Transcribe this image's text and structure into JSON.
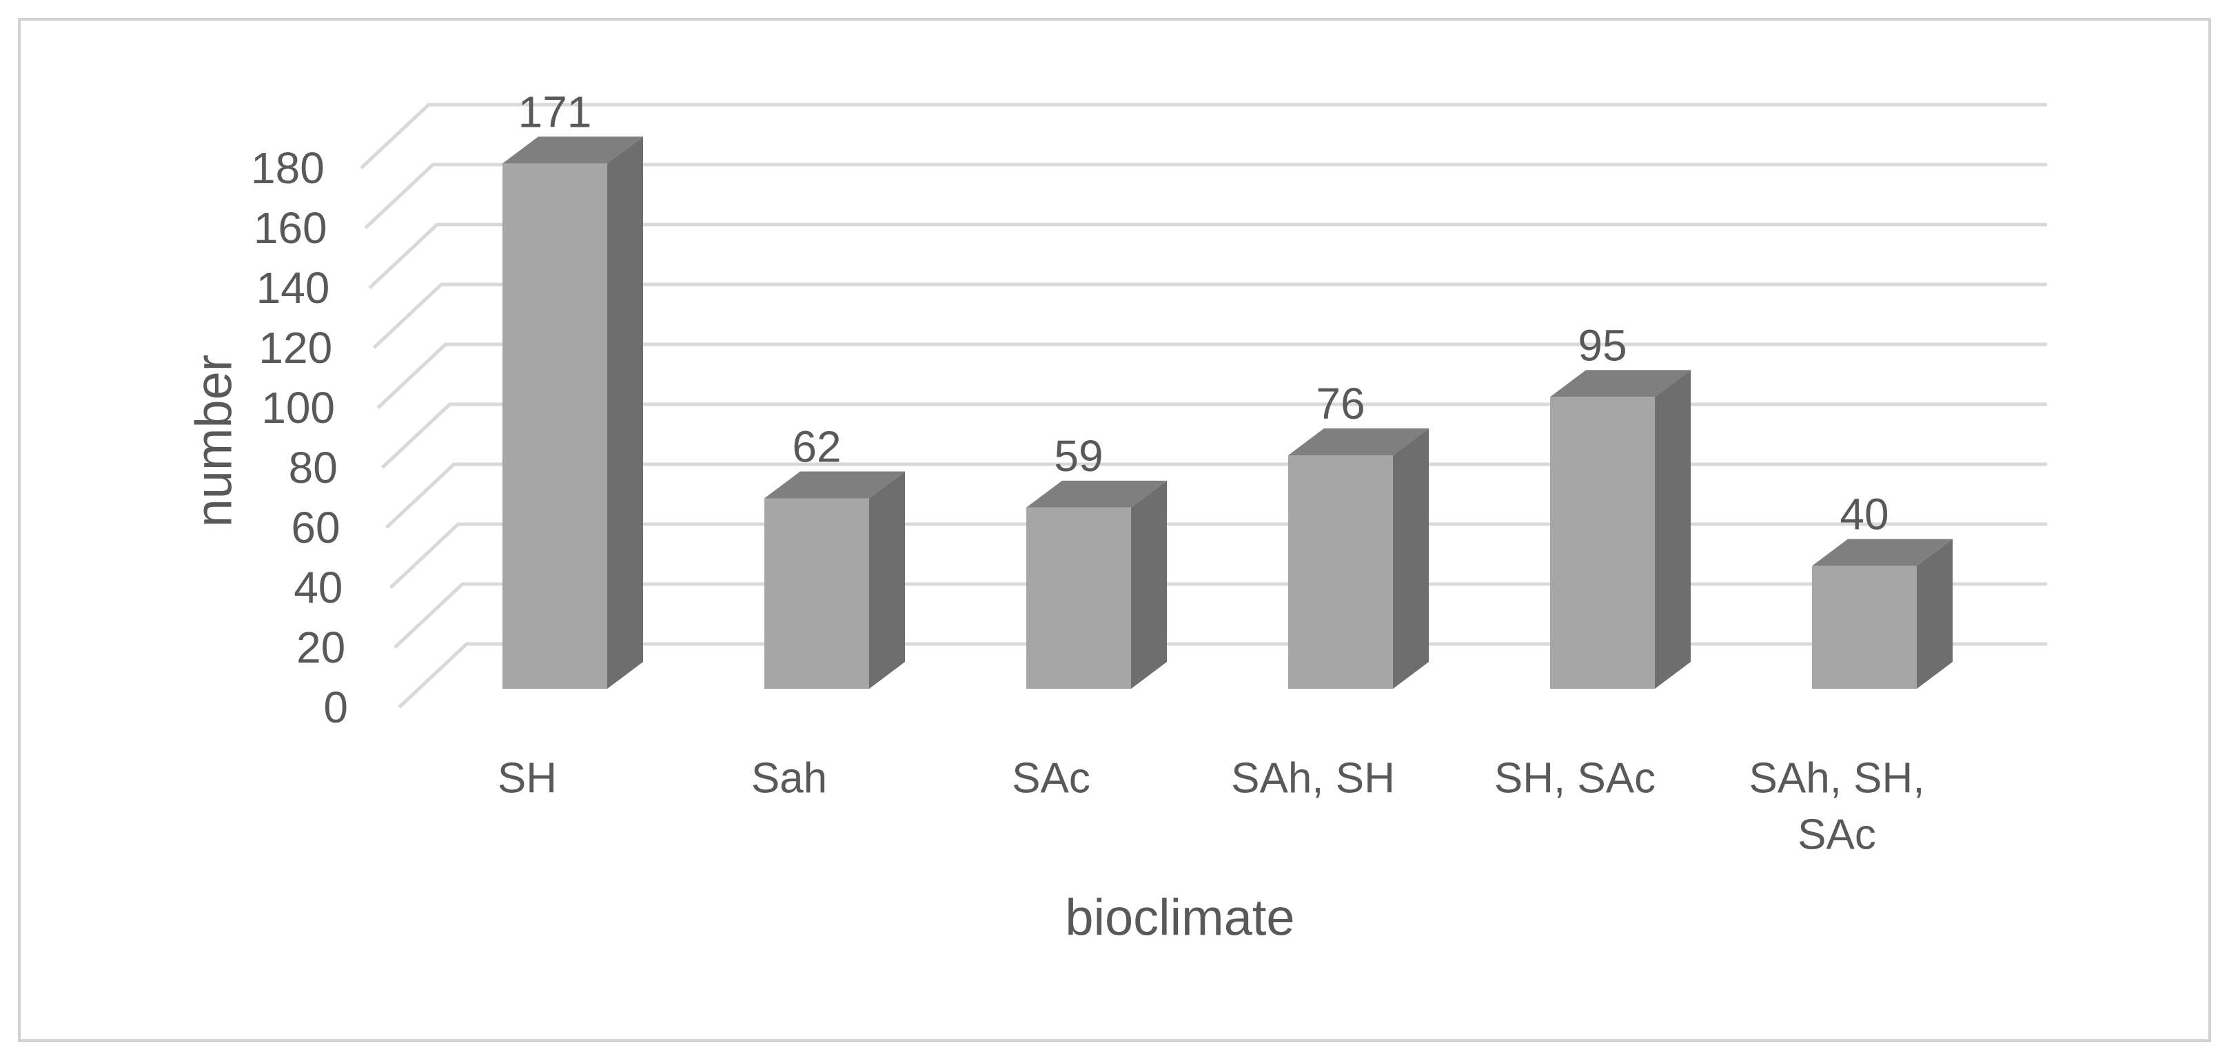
{
  "figure": {
    "background": "#ffffff",
    "frame_color": "#d2d2d2"
  },
  "chart_data": {
    "type": "bar",
    "style": "3d-column",
    "categories": [
      "SH",
      "Sah",
      "SAc",
      "SAh, SH",
      "SH, SAc",
      "SAh, SH, SAc"
    ],
    "category_display_lines": [
      [
        "SH"
      ],
      [
        "Sah"
      ],
      [
        "SAc"
      ],
      [
        "SAh, SH"
      ],
      [
        "SH, SAc"
      ],
      [
        "SAh, SH,",
        "SAc"
      ]
    ],
    "values": [
      171,
      62,
      59,
      76,
      95,
      40
    ],
    "data_labels": [
      "171",
      "62",
      "59",
      "76",
      "95",
      "40"
    ],
    "xlabel": "bioclimate",
    "ylabel": "number",
    "y_ticks": [
      0,
      20,
      40,
      60,
      80,
      100,
      120,
      140,
      160,
      180
    ],
    "ylim": [
      0,
      180
    ],
    "grid": true,
    "legend": "none",
    "colors": {
      "bar_front": "#a6a6a6",
      "bar_side": "#6e6e6e",
      "bar_top": "#7f7f7f",
      "gridline": "#d9d9d9",
      "text": "#595959"
    }
  }
}
